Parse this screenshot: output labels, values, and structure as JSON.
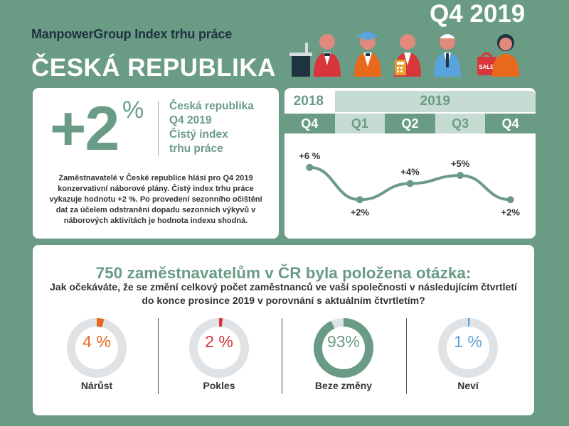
{
  "header": {
    "brand": "ManpowerGroup Index trhu práce",
    "country": "ČESKÁ REPUBLIKA",
    "quarter": "Q4 2019",
    "sale_label": "SALE"
  },
  "index_card": {
    "value": "+2",
    "pct": "%",
    "label_lines": [
      "Česká republika",
      "Q4 2019",
      "Čistý index",
      "trhu práce"
    ],
    "description": "Zaměstnavatelé v České republice hlásí pro Q4 2019 konzervativní náborové plány. Čistý index trhu práce vykazuje hodnotu +2 %. Po provedení sezonního očištění dat za účelem odstranění dopadu sezonních výkyvů v náborových aktivitách je hodnota indexu shodná."
  },
  "colors": {
    "accent": "#6a9b85",
    "light": "#c6dcd2",
    "dark": "#1f3340",
    "orange": "#e8681c",
    "red": "#d9363b",
    "blue": "#5ba3db",
    "track": "#dfe3e6"
  },
  "chart_data": [
    {
      "type": "line",
      "years": [
        {
          "label": "2018",
          "span": 1
        },
        {
          "label": "2019",
          "span": 4
        }
      ],
      "categories": [
        "Q4",
        "Q1",
        "Q2",
        "Q3",
        "Q4"
      ],
      "values": [
        6,
        2,
        4,
        5,
        2
      ],
      "data_labels": [
        "+6 %",
        "+2%",
        "+4%",
        "+5%",
        "+2%"
      ],
      "ylim": [
        0,
        8
      ]
    },
    {
      "type": "pie",
      "title": "750 zaměstnavatelům v ČR byla položena otázka:",
      "question": "Jak očekáváte, že se změní celkový počet zaměstnanců ve vaší společnosti v následujícím čtvrtletí do konce prosince 2019 v porovnání s aktuálním čtvrtletím?",
      "slices": [
        {
          "label": "Nárůst",
          "value": 4,
          "display": "4 %",
          "color": "#e8681c"
        },
        {
          "label": "Pokles",
          "value": 2,
          "display": "2 %",
          "color": "#d9363b"
        },
        {
          "label": "Beze změny",
          "value": 93,
          "display": "93%",
          "color": "#6a9b85"
        },
        {
          "label": "Neví",
          "value": 1,
          "display": "1 %",
          "color": "#5ba3db"
        }
      ]
    }
  ]
}
